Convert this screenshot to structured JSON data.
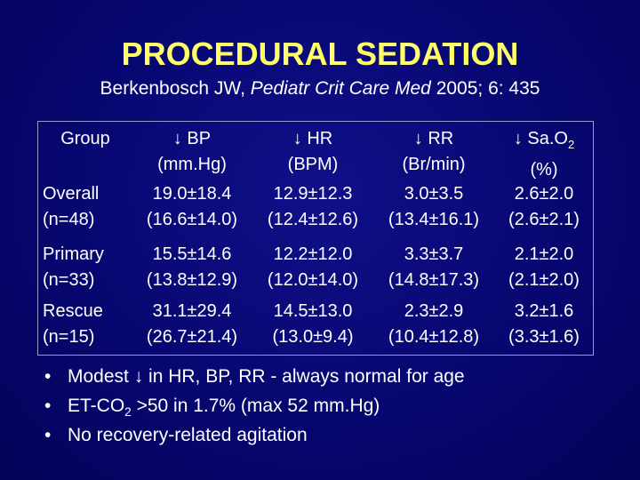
{
  "title": "PROCEDURAL SEDATION",
  "subtitle": {
    "authors": "Berkenbosch JW,",
    "journal": "Pediatr Crit Care Med",
    "citation": "2005; 6: 435"
  },
  "table": {
    "header": {
      "group": "Group",
      "columns": [
        {
          "text": "↓ BP",
          "unit": "(mm.Hg)"
        },
        {
          "text": "↓ HR",
          "unit": "(BPM)"
        },
        {
          "text": "↓ RR",
          "unit": "(Br/min)"
        },
        {
          "text": "↓ Sa.O",
          "sub": "2",
          "unit": "(%)"
        }
      ]
    },
    "rows": [
      {
        "group": [
          "Overall",
          "(n=48)"
        ],
        "cells": [
          [
            "19.0±18.4",
            "(16.6±14.0)"
          ],
          [
            "12.9±12.3",
            "(12.4±12.6)"
          ],
          [
            "3.0±3.5",
            "(13.4±16.1)"
          ],
          [
            "2.6±2.0",
            "(2.6±2.1)"
          ]
        ]
      },
      {
        "group": [
          "Primary",
          "(n=33)"
        ],
        "cells": [
          [
            "15.5±14.6",
            "(13.8±12.9)"
          ],
          [
            "12.2±12.0",
            "(12.0±14.0)"
          ],
          [
            "3.3±3.7",
            "(14.8±17.3)"
          ],
          [
            "2.1±2.0",
            "(2.1±2.0)"
          ]
        ]
      },
      {
        "group": [
          "Rescue",
          "(n=15)"
        ],
        "cells": [
          [
            "31.1±29.4",
            "(26.7±21.4)"
          ],
          [
            "14.5±13.0",
            "(13.0±9.4)"
          ],
          [
            "2.3±2.9",
            "(10.4±12.8)"
          ],
          [
            "3.2±1.6",
            "(3.3±1.6)"
          ]
        ]
      }
    ]
  },
  "bullets": [
    {
      "text": "Modest ↓ in HR, BP, RR - always normal for age"
    },
    {
      "before": "ET-CO",
      "sub": "2",
      "after": " >50 in 1.7% (max 52 mm.Hg)"
    },
    {
      "text": "No recovery-related agitation"
    }
  ]
}
